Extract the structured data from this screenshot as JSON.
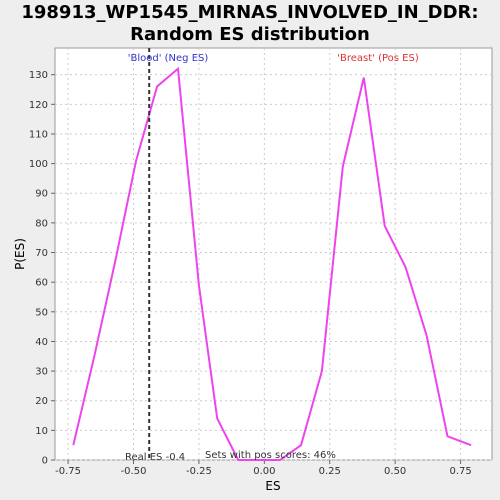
{
  "chart_data": {
    "type": "line",
    "title": "198913_WP1545_MIRNAS_INVOLVED_IN_DDR: Random ES distribution",
    "title_lines": [
      "198913_WP1545_MIRNAS_INVOLVED_IN_DDR:",
      "Random ES distribution"
    ],
    "xlabel": "ES",
    "ylabel": "P(ES)",
    "xlim": [
      -0.8,
      0.87
    ],
    "ylim": [
      0,
      139
    ],
    "x_ticks": [
      -0.75,
      -0.5,
      -0.25,
      0.0,
      0.25,
      0.5,
      0.75
    ],
    "x_tick_labels": [
      "-0.75",
      "-0.50",
      "-0.25",
      "0.00",
      "0.25",
      "0.50",
      "0.75"
    ],
    "y_ticks": [
      0,
      10,
      20,
      30,
      40,
      50,
      60,
      70,
      80,
      90,
      100,
      110,
      120,
      130
    ],
    "y_tick_labels": [
      "0",
      "10",
      "20",
      "30",
      "40",
      "50",
      "60",
      "70",
      "80",
      "90",
      "100",
      "110",
      "120",
      "130"
    ],
    "grid": true,
    "series": [
      {
        "color": "#ee44ee",
        "x": [
          -0.73,
          -0.65,
          -0.57,
          -0.49,
          -0.41,
          -0.33,
          -0.25,
          -0.18,
          -0.1,
          -0.02,
          0.06,
          0.14,
          0.22,
          0.3,
          0.38,
          0.46,
          0.54,
          0.62,
          0.7,
          0.79
        ],
        "y": [
          5,
          35,
          67,
          101,
          126,
          132,
          59,
          14,
          0,
          0,
          0,
          5,
          30,
          99,
          129,
          79,
          65,
          42,
          8,
          5
        ]
      }
    ],
    "real_es": -0.44,
    "annotations": {
      "neg_label": "'Blood' (Neg ES)",
      "pos_label": "'Breast' (Pos ES)",
      "real_es_label": "Real ES -0.4",
      "pos_scores_label": "Sets with pos scores: 46%"
    },
    "colors": {
      "line": "#ee44ee",
      "neg_label": "#3333cc",
      "pos_label": "#dd3333",
      "grid": "#cccccc",
      "marker_line": "#333333"
    }
  }
}
